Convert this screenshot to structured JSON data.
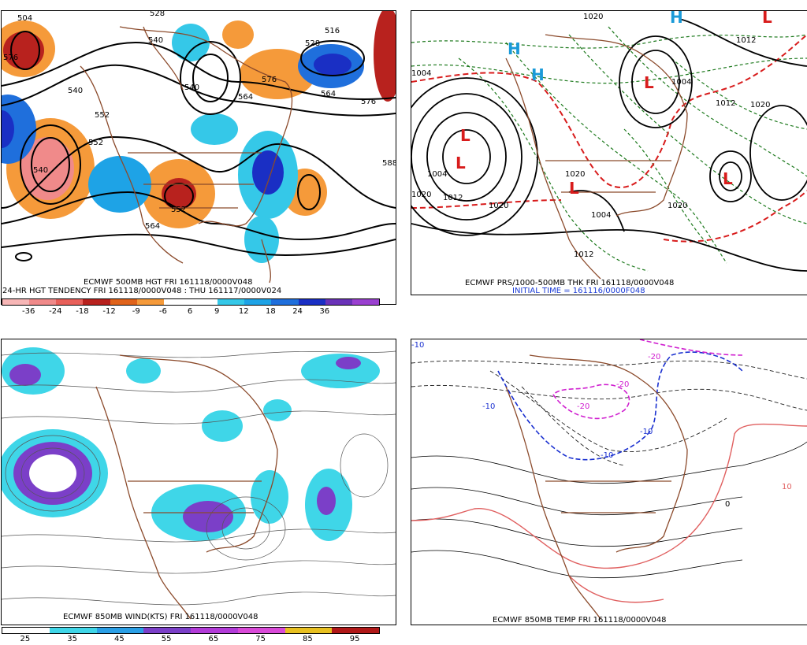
{
  "panels": {
    "p500": {
      "caption_line1": "ECMWF 500MB HGT FRI 161118/0000V048",
      "caption_line2": "24-HR HGT TENDENCY FRI 161118/0000V048 : THU 161117/0000V024",
      "contour_labels": [
        "504",
        "528",
        "540",
        "516",
        "540",
        "552",
        "564",
        "576",
        "540",
        "552",
        "564",
        "576",
        "528",
        "588",
        "540",
        "552",
        "564",
        "576"
      ],
      "colorbar": {
        "ticks": [
          "-36",
          "-24",
          "-18",
          "-12",
          "-9",
          "-6",
          "6",
          "9",
          "12",
          "18",
          "24",
          "36"
        ],
        "colors": [
          "#f7b6b6",
          "#f08a8a",
          "#e8605a",
          "#b8221e",
          "#e0631b",
          "#f59a3a",
          "#ffffff",
          "#ffffff",
          "#35c8e8",
          "#1ea3e6",
          "#1f6fdc",
          "#1a2fc4",
          "#6a32b8",
          "#9a40d0"
        ]
      }
    },
    "pprs": {
      "caption_line1": "ECMWF PRS/1000-500MB THK FRI 161118/0000V048",
      "caption_line2": "INITIAL TIME = 161116/0000F048",
      "contour_labels": [
        "1020",
        "1004",
        "1012",
        "1004",
        "1020",
        "1004",
        "1012",
        "1020",
        "1012",
        "1020",
        "1020",
        "1004",
        "1020",
        "1012"
      ],
      "high_letter": "H",
      "low_letter": "L"
    },
    "pwind": {
      "caption_line1": "ECMWF 850MB WIND(KTS) FRI 161118/0000V048",
      "colorbar": {
        "ticks": [
          "25",
          "35",
          "45",
          "55",
          "65",
          "75",
          "85",
          "95"
        ],
        "colors": [
          "#ffffff",
          "#3fd6e8",
          "#2a9fe6",
          "#7b3fc8",
          "#b23bd8",
          "#d94ad8",
          "#e8c020",
          "#b01818"
        ]
      }
    },
    "ptemp": {
      "caption_line1": "ECMWF 850MB TEMP FRI 161118/0000V048",
      "contour_labels": [
        "-10",
        "-10",
        "-20",
        "-20",
        "-10",
        "-20",
        "-10",
        "0",
        "10"
      ]
    }
  }
}
